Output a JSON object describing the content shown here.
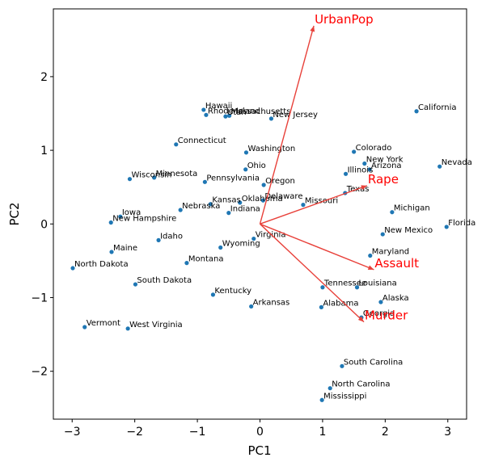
{
  "chart_data": {
    "type": "scatter",
    "title": "",
    "xlabel": "PC1",
    "ylabel": "PC2",
    "xlim": [
      -3.3,
      3.3
    ],
    "ylim": [
      -2.65,
      2.92
    ],
    "xticks": [
      -3,
      -2,
      -1,
      0,
      1,
      2,
      3
    ],
    "yticks": [
      -2,
      -1,
      0,
      1,
      2
    ],
    "tick_labels_x": [
      "−3",
      "−2",
      "−1",
      "0",
      "1",
      "2",
      "3"
    ],
    "tick_labels_y": [
      "−2",
      "−1",
      "0",
      "1",
      "2"
    ],
    "grid": false,
    "point_color": "#1f77b4",
    "arrow_color": "#e8413a",
    "label_color": "#ff0000",
    "points": [
      {
        "label": "Alabama",
        "x": 0.98,
        "y": -1.13
      },
      {
        "label": "Alaska",
        "x": 1.93,
        "y": -1.06
      },
      {
        "label": "Arizona",
        "x": 1.75,
        "y": 0.74
      },
      {
        "label": "Arkansas",
        "x": -0.14,
        "y": -1.12
      },
      {
        "label": "California",
        "x": 2.5,
        "y": 1.53
      },
      {
        "label": "Colorado",
        "x": 1.5,
        "y": 0.98
      },
      {
        "label": "Connecticut",
        "x": -1.34,
        "y": 1.08
      },
      {
        "label": "Delaware",
        "x": 0.05,
        "y": 0.32
      },
      {
        "label": "Florida",
        "x": 2.98,
        "y": -0.04
      },
      {
        "label": "Georgia",
        "x": 1.62,
        "y": -1.27
      },
      {
        "label": "Hawaii",
        "x": -0.9,
        "y": 1.55
      },
      {
        "label": "Idaho",
        "x": -1.62,
        "y": -0.22
      },
      {
        "label": "Illinois",
        "x": 1.37,
        "y": 0.68
      },
      {
        "label": "Indiana",
        "x": -0.5,
        "y": 0.15
      },
      {
        "label": "Iowa",
        "x": -2.23,
        "y": 0.1
      },
      {
        "label": "Kansas",
        "x": -0.79,
        "y": 0.27
      },
      {
        "label": "Kentucky",
        "x": -0.75,
        "y": -0.96
      },
      {
        "label": "Louisiana",
        "x": 1.55,
        "y": -0.86
      },
      {
        "label": "Maine",
        "x": -2.37,
        "y": -0.38
      },
      {
        "label": "Maryland",
        "x": 1.76,
        "y": -0.43
      },
      {
        "label": "Massachusetts",
        "x": -0.49,
        "y": 1.47
      },
      {
        "label": "Michigan",
        "x": 2.11,
        "y": 0.16
      },
      {
        "label": "Minnesota",
        "x": -1.69,
        "y": 0.63
      },
      {
        "label": "Mississippi",
        "x": 0.99,
        "y": -2.39
      },
      {
        "label": "Missouri",
        "x": 0.69,
        "y": 0.26
      },
      {
        "label": "Montana",
        "x": -1.17,
        "y": -0.53
      },
      {
        "label": "Nebraska",
        "x": -1.27,
        "y": 0.19
      },
      {
        "label": "Nevada",
        "x": 2.87,
        "y": 0.78
      },
      {
        "label": "New Hampshire",
        "x": -2.38,
        "y": 0.02
      },
      {
        "label": "New Jersey",
        "x": 0.18,
        "y": 1.43
      },
      {
        "label": "New Mexico",
        "x": 1.96,
        "y": -0.14
      },
      {
        "label": "New York",
        "x": 1.67,
        "y": 0.82
      },
      {
        "label": "North Carolina",
        "x": 1.12,
        "y": -2.23
      },
      {
        "label": "North Dakota",
        "x": -2.99,
        "y": -0.6
      },
      {
        "label": "Ohio",
        "x": -0.23,
        "y": 0.74
      },
      {
        "label": "Oklahoma",
        "x": -0.32,
        "y": 0.29
      },
      {
        "label": "Oregon",
        "x": 0.06,
        "y": 0.53
      },
      {
        "label": "Pennsylvania",
        "x": -0.88,
        "y": 0.57
      },
      {
        "label": "Rhode Island",
        "x": -0.86,
        "y": 1.48
      },
      {
        "label": "South Carolina",
        "x": 1.31,
        "y": -1.93
      },
      {
        "label": "South Dakota",
        "x": -1.99,
        "y": -0.82
      },
      {
        "label": "Tennessee",
        "x": 1.0,
        "y": -0.86
      },
      {
        "label": "Texas",
        "x": 1.36,
        "y": 0.42
      },
      {
        "label": "Utah",
        "x": -0.55,
        "y": 1.46
      },
      {
        "label": "Vermont",
        "x": -2.8,
        "y": -1.4
      },
      {
        "label": "Virginia",
        "x": -0.1,
        "y": -0.2
      },
      {
        "label": "Washington",
        "x": -0.22,
        "y": 0.97
      },
      {
        "label": "West Virginia",
        "x": -2.11,
        "y": -1.42
      },
      {
        "label": "Wisconsin",
        "x": -2.08,
        "y": 0.61
      },
      {
        "label": "Wyoming",
        "x": -0.63,
        "y": -0.32
      }
    ],
    "loadings": [
      {
        "label": "Murder",
        "x": 1.66,
        "y": -1.33
      },
      {
        "label": "Assault",
        "x": 1.82,
        "y": -0.62
      },
      {
        "label": "UrbanPop",
        "x": 0.86,
        "y": 2.69
      },
      {
        "label": "Rape",
        "x": 1.71,
        "y": 0.52
      }
    ]
  }
}
